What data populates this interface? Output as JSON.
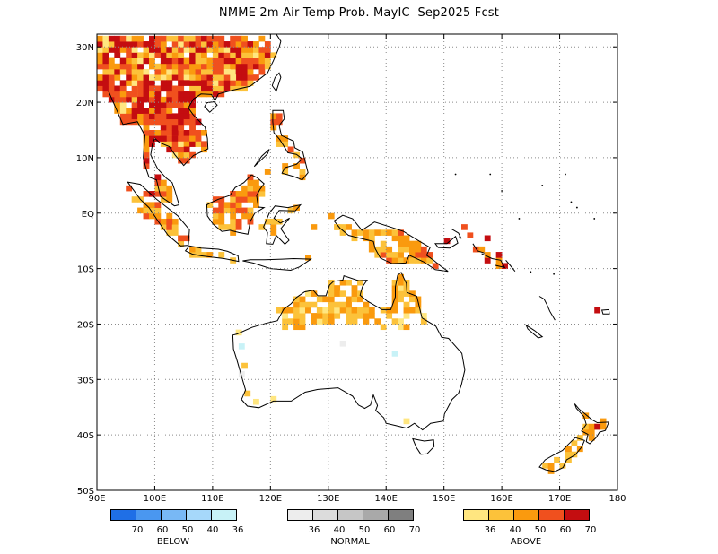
{
  "title": "NMME 2m Air Temp Prob. MayIC  Sep2025 Fcst",
  "map": {
    "region": "Southeast Asia / Maritime Continent / Australia / New Zealand",
    "lon_range": [
      90,
      180
    ],
    "lat_range": [
      -50,
      32
    ],
    "lat_ticks": [
      "30N",
      "20N",
      "10N",
      "EQ",
      "10S",
      "20S",
      "30S",
      "40S",
      "50S"
    ],
    "lon_ticks": [
      "90E",
      "100E",
      "110E",
      "120E",
      "130E",
      "140E",
      "150E",
      "160E",
      "170E",
      "180"
    ],
    "grid": "dotted",
    "categories": {
      "above": "warm shades dominate over mainland Southeast Asia (very high), the Maritime Continent islands, northern Australia and New Zealand",
      "below": "a few isolated light cyan cells over western and northern Australia",
      "normal": "a few isolated light grey cells over Western Australia"
    }
  },
  "legend": {
    "below": {
      "caption": "BELOW",
      "labels": [
        "70",
        "60",
        "50",
        "40",
        "36"
      ],
      "colors": [
        "#1f6fe6",
        "#4a97f0",
        "#78b8f5",
        "#a6d8fa",
        "#c8f2f7"
      ]
    },
    "normal": {
      "caption": "NORMAL",
      "labels": [
        "36",
        "40",
        "50",
        "60",
        "70"
      ],
      "colors": [
        "#ededed",
        "#dcdcdc",
        "#c6c6c6",
        "#a9a9a9",
        "#7f7f7f"
      ]
    },
    "above": {
      "caption": "ABOVE",
      "labels": [
        "36",
        "40",
        "50",
        "60",
        "70"
      ],
      "colors": [
        "#ffe680",
        "#fcc23a",
        "#fa9a0e",
        "#f0501e",
        "#c40d10"
      ]
    }
  }
}
